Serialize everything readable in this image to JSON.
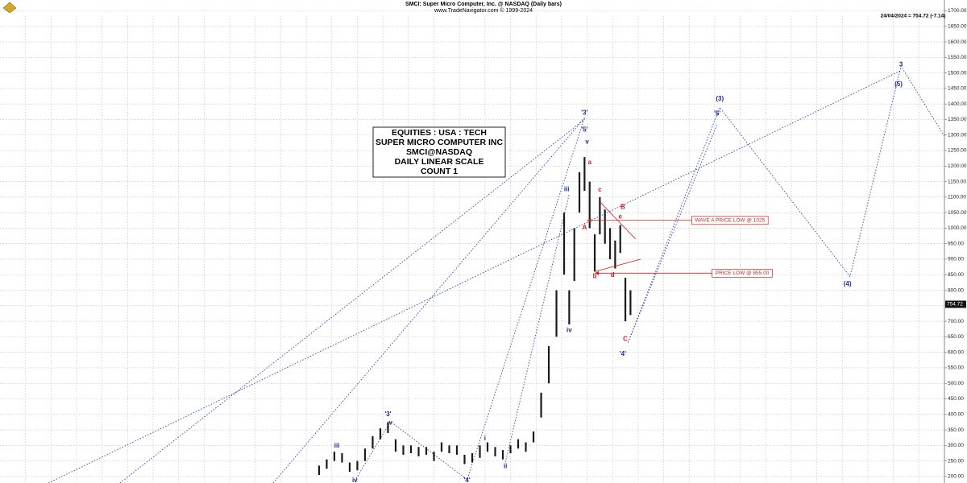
{
  "chart_data": {
    "type": "highlow",
    "title": "SMCI:  Super Micro Computer, Inc. @ NASDAQ  (Daily bars)",
    "subtitle": "www.TradeNavigator.com © 1999-2024",
    "last_quote": "24/04/2024 = 754.72 (-7.14)",
    "text_box": [
      "EQUITIES : USA : TECH",
      "SUPER MICRO COMPUTER INC",
      "SMCI@NASDAQ",
      "DAILY LINEAR SCALE",
      "COUNT 1"
    ],
    "bar_color": "#1a1a1a",
    "x": [
      125,
      128,
      131,
      134,
      137,
      140,
      143,
      146,
      149,
      152,
      155,
      158,
      161,
      164,
      167,
      170,
      173,
      176,
      179,
      182,
      185,
      188,
      191,
      194,
      197,
      200,
      203,
      206,
      209,
      212,
      215,
      218,
      221,
      223,
      225,
      227,
      229,
      231,
      233,
      235,
      237,
      239,
      241,
      243,
      245,
      247
    ],
    "low": [
      205,
      225,
      250,
      245,
      215,
      220,
      250,
      290,
      320,
      340,
      280,
      270,
      275,
      265,
      270,
      250,
      280,
      275,
      270,
      240,
      245,
      260,
      280,
      265,
      255,
      275,
      290,
      280,
      310,
      390,
      500,
      650,
      850,
      690,
      830,
      1050,
      1120,
      1000,
      860,
      980,
      950,
      900,
      870,
      920,
      700,
      720
    ],
    "high": [
      235,
      255,
      280,
      275,
      245,
      250,
      290,
      330,
      355,
      375,
      320,
      300,
      300,
      295,
      295,
      280,
      310,
      300,
      300,
      270,
      275,
      300,
      310,
      295,
      285,
      300,
      320,
      310,
      345,
      470,
      620,
      800,
      1050,
      800,
      1000,
      1180,
      1229,
      1150,
      980,
      1100,
      1060,
      1000,
      960,
      1010,
      840,
      800
    ],
    "xlim": [
      0,
      370
    ],
    "xticks": [
      10,
      20,
      30,
      40,
      50,
      60,
      70,
      80,
      90,
      100,
      110,
      120,
      130,
      140,
      150,
      160,
      170,
      180,
      190,
      200,
      210,
      220,
      230,
      240,
      250,
      260,
      270,
      280,
      290,
      300,
      310,
      320,
      330,
      340,
      350,
      360
    ],
    "ylim": [
      179,
      1735
    ],
    "yticks": [
      {
        "value": 200,
        "label": "200.00"
      },
      {
        "value": 250,
        "label": "250.00"
      },
      {
        "value": 300,
        "label": "300.00"
      },
      {
        "value": 350,
        "label": "350.00"
      },
      {
        "value": 400,
        "label": "400.00"
      },
      {
        "value": 450,
        "label": "450.00"
      },
      {
        "value": 500,
        "label": "500.00"
      },
      {
        "value": 550,
        "label": "550.00"
      },
      {
        "value": 600,
        "label": "600.00"
      },
      {
        "value": 650,
        "label": "650.00"
      },
      {
        "value": 700,
        "label": "700.00"
      },
      {
        "value": 750,
        "label": "750.00"
      },
      {
        "value": 800,
        "label": "800.00"
      },
      {
        "value": 850,
        "label": "850.00"
      },
      {
        "value": 900,
        "label": "900.00"
      },
      {
        "value": 950,
        "label": "950.00"
      },
      {
        "value": 1000,
        "label": "1000.00"
      },
      {
        "value": 1050,
        "label": "1050.00"
      },
      {
        "value": 1100,
        "label": "1100.00"
      },
      {
        "value": 1150,
        "label": "1150.00"
      },
      {
        "value": 1200,
        "label": "1200.00"
      },
      {
        "value": 1250,
        "label": "1250.00"
      },
      {
        "value": 1300,
        "label": "1300.00"
      },
      {
        "value": 1350,
        "label": "1350.00"
      },
      {
        "value": 1400,
        "label": "1400.00"
      },
      {
        "value": 1450,
        "label": "1450.00"
      },
      {
        "value": 1500,
        "label": "1500.00"
      },
      {
        "value": 1550,
        "label": "1550.00"
      },
      {
        "value": 1600,
        "label": "1600.00"
      },
      {
        "value": 1650,
        "label": "1650.00"
      },
      {
        "value": 1700,
        "label": "1700.00"
      }
    ],
    "grid": true,
    "last_price": {
      "value": 754.72,
      "label": "754.72"
    },
    "wave_lines": [
      {
        "color": "#2a3fb0",
        "x": [
          19,
          353
        ],
        "y": [
          179,
          1508
        ]
      },
      {
        "color": "#2a3fb0",
        "x": [
          47,
          229
        ],
        "y": [
          179,
          1350
        ]
      },
      {
        "color": "#2a3fb0",
        "x": [
          107,
          229
        ],
        "y": [
          179,
          1355
        ]
      },
      {
        "color": "#2a3fb0",
        "x": [
          139,
          153,
          183,
          229
        ],
        "y": [
          186,
          377,
          190,
          1355
        ]
      },
      {
        "color": "#2a3fb0",
        "x": [
          198,
          223
        ],
        "y": [
          246,
          1110
        ]
      },
      {
        "color": "#2a3fb0",
        "x": [
          246,
          282,
          333,
          353,
          370
        ],
        "y": [
          631,
          1389,
          844,
          1522,
          1296
        ]
      },
      {
        "color": "#2a3fb0",
        "x": [
          246,
          281
        ],
        "y": [
          631,
          1336
        ]
      }
    ],
    "red_lines": [
      {
        "color": "#cc2222",
        "x": [
          235,
          249
        ],
        "y": [
          1085,
          965
        ]
      },
      {
        "color": "#cc2222",
        "x": [
          233,
          251
        ],
        "y": [
          860,
          900
        ]
      }
    ],
    "price_lines": [
      {
        "label": "WAVE A PRICE LOW @ 1025",
        "value": 1025,
        "x": [
          230,
          271
        ],
        "color": "#cc2222"
      },
      {
        "label": "PRICE LOW @ 855.00",
        "value": 855,
        "x": [
          233,
          279
        ],
        "color": "#cc2222"
      }
    ],
    "annotations": [
      {
        "text": "iii",
        "x": 132,
        "y": 299,
        "color": "#1a2a9a"
      },
      {
        "text": "iv",
        "x": 139,
        "y": 187,
        "color": "#1a2a9a"
      },
      {
        "text": "'3'",
        "x": 152,
        "y": 400,
        "color": "#1a2a9a"
      },
      {
        "text": "v",
        "x": 153,
        "y": 373,
        "color": "#1a2a9a"
      },
      {
        "text": "i",
        "x": 190,
        "y": 322,
        "color": "#1a2a9a"
      },
      {
        "text": "ii",
        "x": 198,
        "y": 233,
        "color": "#1a2a9a"
      },
      {
        "text": "'4'",
        "x": 183,
        "y": 187,
        "color": "#1a2a9a"
      },
      {
        "text": "iii",
        "x": 222,
        "y": 1124,
        "color": "#1a2a9a"
      },
      {
        "text": "iv",
        "x": 223,
        "y": 671,
        "color": "#1a2a9a"
      },
      {
        "text": "'3'",
        "x": 229,
        "y": 1371,
        "color": "#1a2a9a"
      },
      {
        "text": "'5'",
        "x": 229,
        "y": 1317,
        "color": "#1a2a9a"
      },
      {
        "text": "v",
        "x": 230,
        "y": 1277,
        "color": "#1a2a9a"
      },
      {
        "text": "a",
        "x": 231,
        "y": 1211,
        "color": "#cc2222"
      },
      {
        "text": "A",
        "x": 229,
        "y": 1002,
        "color": "#cc2222"
      },
      {
        "text": "c",
        "x": 235,
        "y": 1123,
        "color": "#cc2222"
      },
      {
        "text": "e",
        "x": 243,
        "y": 1036,
        "color": "#cc2222"
      },
      {
        "text": "B",
        "x": 244,
        "y": 1067,
        "color": "#cc2222"
      },
      {
        "text": "b",
        "x": 233,
        "y": 844,
        "color": "#cc2222"
      },
      {
        "text": "d",
        "x": 240,
        "y": 849,
        "color": "#cc2222"
      },
      {
        "text": "C",
        "x": 245,
        "y": 642,
        "color": "#cc2222"
      },
      {
        "text": "'4'",
        "x": 244,
        "y": 594,
        "color": "#1a2a9a"
      },
      {
        "text": "(3)",
        "x": 282,
        "y": 1416,
        "color": "#1a2a9a"
      },
      {
        "text": "'5'",
        "x": 281,
        "y": 1368,
        "color": "#1a2a9a"
      },
      {
        "text": "3",
        "x": 353,
        "y": 1527,
        "color": "#1a2a9a"
      },
      {
        "text": "(5)",
        "x": 352,
        "y": 1463,
        "color": "#1a2a9a"
      },
      {
        "text": "(4)",
        "x": 332,
        "y": 820,
        "color": "#1a2a9a"
      }
    ]
  }
}
